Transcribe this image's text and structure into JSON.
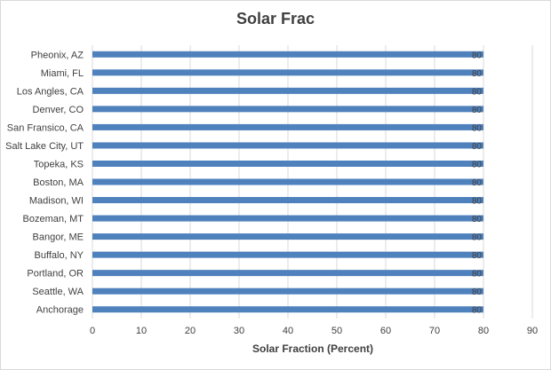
{
  "chart_data": {
    "type": "bar",
    "orientation": "horizontal",
    "title": "Solar Frac",
    "xlabel": "Solar Fraction (Percent)",
    "ylabel": "",
    "categories": [
      "Pheonix, AZ",
      "Miami, FL",
      "Los Angles, CA",
      "Denver, CO",
      "San Fransico, CA",
      "Salt Lake City, UT",
      "Topeka, KS",
      "Boston, MA",
      "Madison, WI",
      "Bozeman, MT",
      "Bangor, ME",
      "Buffalo, NY",
      "Portland, OR",
      "Seattle, WA",
      "Anchorage"
    ],
    "values": [
      80,
      80,
      80,
      80,
      80,
      80,
      80,
      80,
      80,
      80,
      80,
      80,
      80,
      80,
      80
    ],
    "xlim": [
      0,
      90
    ],
    "xticks": [
      0,
      10,
      20,
      30,
      40,
      50,
      60,
      70,
      80,
      90
    ],
    "grid": true,
    "legend": "none",
    "bar_color": "#4f81bd",
    "data_labels": true
  }
}
